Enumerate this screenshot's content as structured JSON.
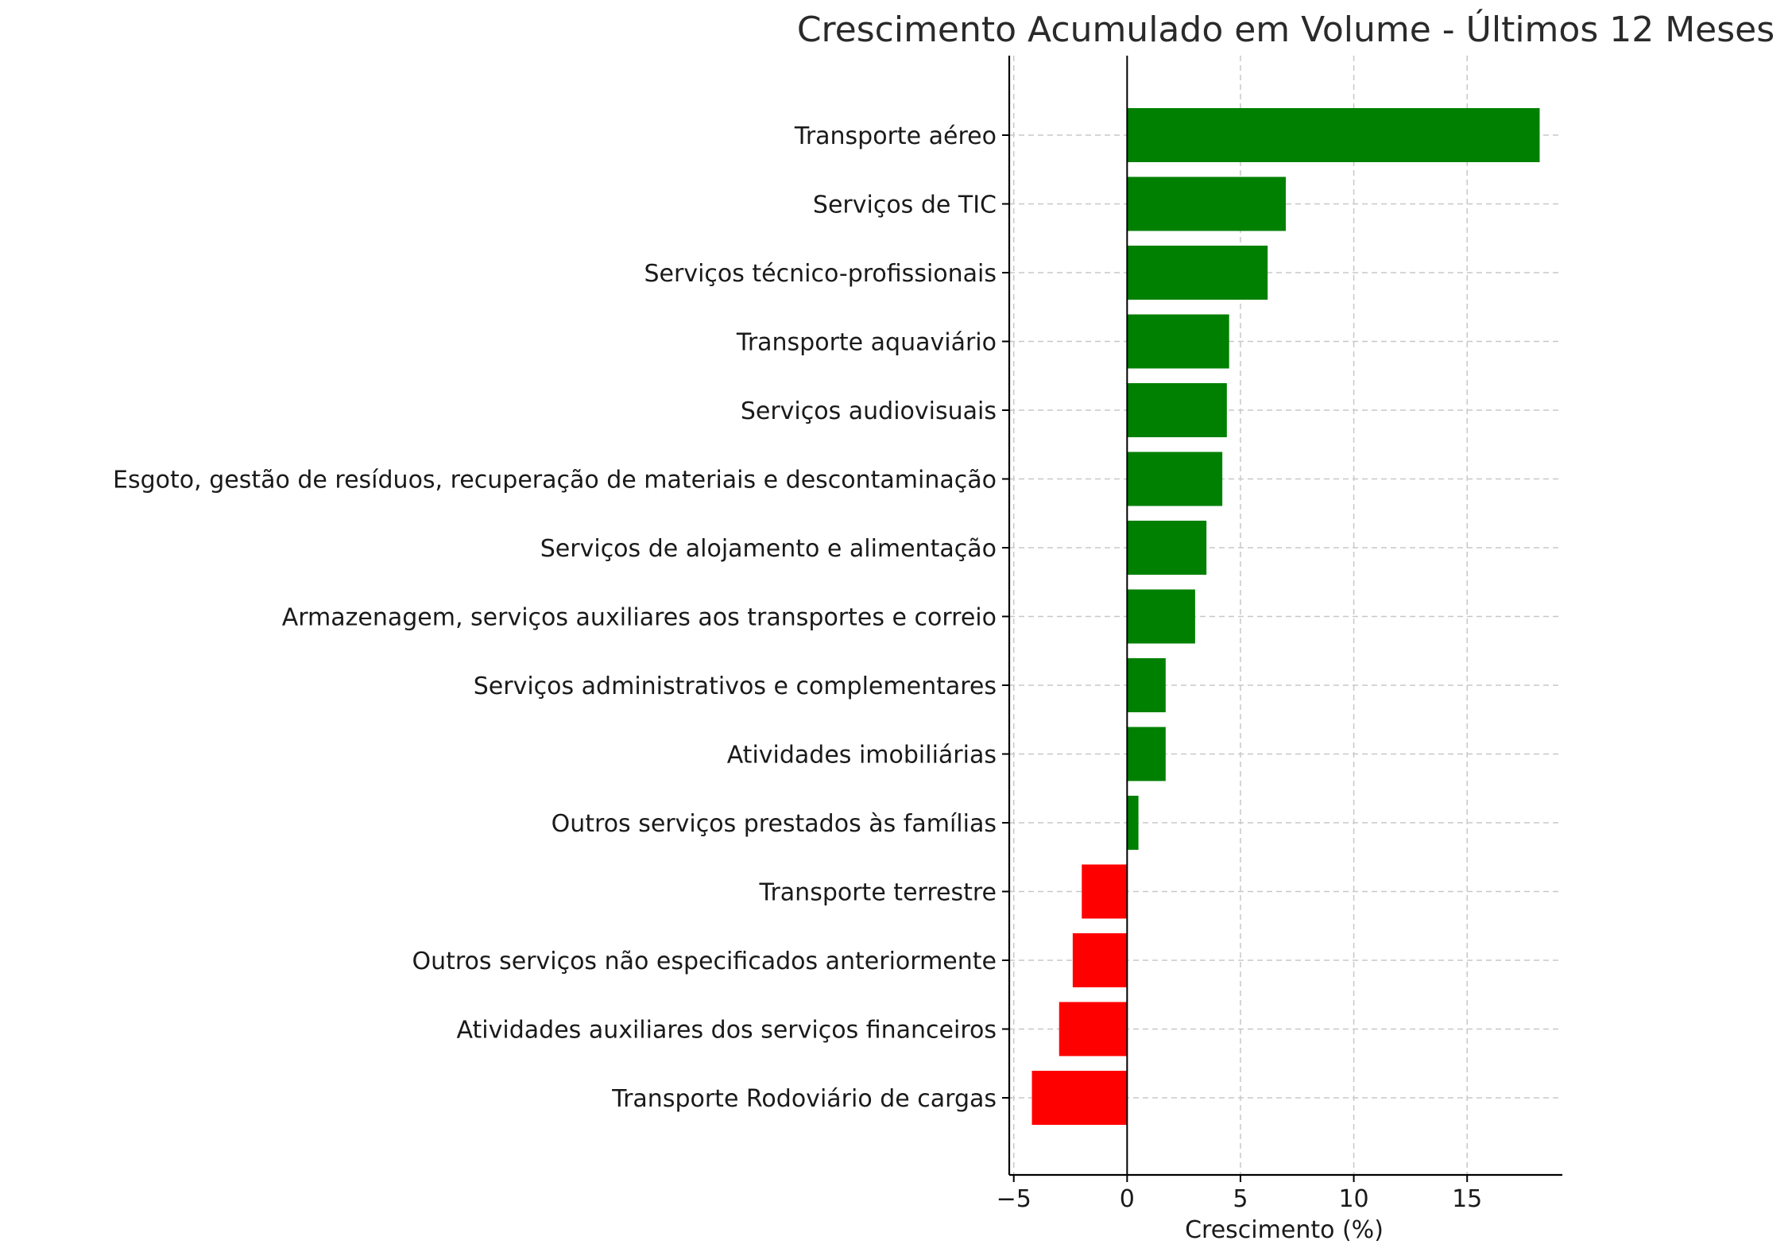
{
  "chart_data": {
    "type": "bar",
    "orientation": "horizontal",
    "title": "Crescimento Acumulado em Volume - Últimos 12 Meses",
    "xlabel": "Crescimento (%)",
    "ylabel": "",
    "xlim": [
      -5.2,
      19.2
    ],
    "xticks": [
      -5,
      0,
      5,
      10,
      15
    ],
    "xtick_labels": [
      "−5",
      "0",
      "5",
      "10",
      "15"
    ],
    "grid": true,
    "positive_color": "#008000",
    "negative_color": "#ff0000",
    "categories": [
      "Transporte aéreo",
      "Serviços de TIC",
      "Serviços técnico-profissionais",
      "Transporte aquaviário",
      "Serviços audiovisuais",
      "Esgoto, gestão de resíduos, recuperação de materiais e descontaminação",
      "Serviços de alojamento e alimentação",
      "Armazenagem, serviços auxiliares aos transportes e correio",
      "Serviços administrativos e complementares",
      "Atividades imobiliárias",
      "Outros serviços prestados às famílias",
      "Transporte terrestre",
      "Outros serviços não especificados anteriormente",
      "Atividades auxiliares dos serviços financeiros",
      "Transporte Rodoviário de cargas"
    ],
    "values": [
      18.2,
      7.0,
      6.2,
      4.5,
      4.4,
      4.2,
      3.5,
      3.0,
      1.7,
      1.7,
      0.5,
      -2.0,
      -2.4,
      -3.0,
      -4.2
    ]
  }
}
